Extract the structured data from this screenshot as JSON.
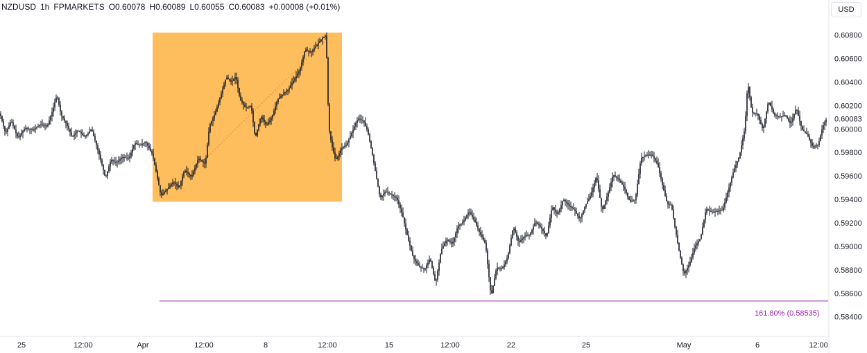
{
  "header": {
    "symbol": "NZDUSD",
    "interval": "1h",
    "broker": "FPMARKETS",
    "open": "O0.60078",
    "high": "H0.60089",
    "low": "L0.60055",
    "close": "C0.60083",
    "change": "+0.00008 (+0.01%)"
  },
  "currency_button": "USD",
  "last_price_label": "0.60083",
  "fib_label": "161.80% (0.58535)",
  "colors": {
    "candles": "#131722",
    "box_fill": "#ffb74d",
    "fib_line": "#9c27b0",
    "axis_text": "#131722",
    "grid_border": "#e0e3eb"
  },
  "chart_data": {
    "type": "line",
    "instrument": "NZDUSD",
    "timeframe": "1h",
    "y_axis": {
      "ticks": [
        0.584,
        0.586,
        0.588,
        0.59,
        0.592,
        0.594,
        0.596,
        0.598,
        0.6,
        0.602,
        0.604,
        0.606,
        0.608
      ],
      "tick_labels": [
        "0.58400",
        "0.58600",
        "0.58800",
        "0.59000",
        "0.59200",
        "0.59400",
        "0.59600",
        "0.59800",
        "0.60000",
        "0.60200",
        "0.60400",
        "0.60600",
        "0.60800"
      ],
      "ylim": [
        0.5831,
        0.6098
      ],
      "position": "right"
    },
    "x_axis": {
      "tick_labels": [
        "25",
        "12:00",
        "Apr",
        "12:00",
        "8",
        "12:00",
        "15",
        "12:00",
        "22",
        "25",
        "May",
        "6",
        "12:00"
      ]
    },
    "series": [
      {
        "values": [
          [
            0,
            0.6013
          ],
          [
            8,
            0.5996
          ],
          [
            16,
            0.6007
          ],
          [
            26,
            0.5992
          ],
          [
            36,
            0.6001
          ],
          [
            48,
            0.5999
          ],
          [
            58,
            0.6004
          ],
          [
            68,
            0.6002
          ],
          [
            76,
            0.6016
          ],
          [
            82,
            0.6029
          ],
          [
            88,
            0.6012
          ],
          [
            96,
            0.6004
          ],
          [
            104,
            0.5993
          ],
          [
            112,
            0.5999
          ],
          [
            122,
            0.5993
          ],
          [
            132,
            0.6
          ],
          [
            140,
            0.5984
          ],
          [
            146,
            0.5972
          ],
          [
            152,
            0.5958
          ],
          [
            160,
            0.5974
          ],
          [
            168,
            0.5971
          ],
          [
            176,
            0.5976
          ],
          [
            186,
            0.5975
          ],
          [
            194,
            0.5988
          ],
          [
            202,
            0.5986
          ],
          [
            210,
            0.5989
          ],
          [
            220,
            0.5978
          ],
          [
            226,
            0.5961
          ],
          [
            232,
            0.5943
          ],
          [
            240,
            0.5948
          ],
          [
            250,
            0.5955
          ],
          [
            258,
            0.595
          ],
          [
            266,
            0.5965
          ],
          [
            276,
            0.5959
          ],
          [
            286,
            0.5975
          ],
          [
            296,
            0.597
          ],
          [
            302,
            0.6003
          ],
          [
            310,
            0.6013
          ],
          [
            318,
            0.6028
          ],
          [
            326,
            0.6044
          ],
          [
            334,
            0.604
          ],
          [
            340,
            0.6045
          ],
          [
            346,
            0.6025
          ],
          [
            354,
            0.6018
          ],
          [
            362,
            0.602
          ],
          [
            368,
            0.5992
          ],
          [
            376,
            0.6011
          ],
          [
            384,
            0.6003
          ],
          [
            392,
            0.601
          ],
          [
            400,
            0.6025
          ],
          [
            408,
            0.603
          ],
          [
            416,
            0.6034
          ],
          [
            424,
            0.6042
          ],
          [
            432,
            0.605
          ],
          [
            440,
            0.6068
          ],
          [
            448,
            0.6065
          ],
          [
            456,
            0.6071
          ],
          [
            464,
            0.6077
          ],
          [
            470,
            0.608
          ],
          [
            474,
            0.6002
          ],
          [
            478,
            0.5987
          ],
          [
            484,
            0.5973
          ],
          [
            492,
            0.5983
          ],
          [
            500,
            0.5987
          ],
          [
            508,
            0.5998
          ],
          [
            516,
            0.6009
          ],
          [
            524,
            0.6007
          ],
          [
            530,
            0.5998
          ],
          [
            536,
            0.5981
          ],
          [
            542,
            0.5961
          ],
          [
            548,
            0.5941
          ],
          [
            556,
            0.5947
          ],
          [
            564,
            0.5944
          ],
          [
            572,
            0.5941
          ],
          [
            580,
            0.5927
          ],
          [
            588,
            0.5907
          ],
          [
            596,
            0.589
          ],
          [
            604,
            0.5883
          ],
          [
            612,
            0.588
          ],
          [
            620,
            0.589
          ],
          [
            628,
            0.5868
          ],
          [
            636,
            0.5897
          ],
          [
            644,
            0.5906
          ],
          [
            652,
            0.5902
          ],
          [
            660,
            0.5917
          ],
          [
            668,
            0.5921
          ],
          [
            676,
            0.593
          ],
          [
            684,
            0.5922
          ],
          [
            692,
            0.5911
          ],
          [
            700,
            0.5902
          ],
          [
            708,
            0.5857
          ],
          [
            716,
            0.5882
          ],
          [
            724,
            0.5881
          ],
          [
            732,
            0.5891
          ],
          [
            740,
            0.5917
          ],
          [
            748,
            0.5903
          ],
          [
            756,
            0.5909
          ],
          [
            764,
            0.591
          ],
          [
            772,
            0.5921
          ],
          [
            780,
            0.5916
          ],
          [
            788,
            0.5908
          ],
          [
            796,
            0.5934
          ],
          [
            804,
            0.5927
          ],
          [
            812,
            0.594
          ],
          [
            820,
            0.5935
          ],
          [
            828,
            0.5931
          ],
          [
            836,
            0.5923
          ],
          [
            844,
            0.5935
          ],
          [
            852,
            0.5944
          ],
          [
            860,
            0.596
          ],
          [
            868,
            0.593
          ],
          [
            876,
            0.5944
          ],
          [
            884,
            0.5961
          ],
          [
            892,
            0.5957
          ],
          [
            900,
            0.595
          ],
          [
            908,
            0.5938
          ],
          [
            916,
            0.594
          ],
          [
            924,
            0.5975
          ],
          [
            932,
            0.5978
          ],
          [
            940,
            0.5978
          ],
          [
            948,
            0.597
          ],
          [
            956,
            0.595
          ],
          [
            962,
            0.5936
          ],
          [
            968,
            0.5935
          ],
          [
            974,
            0.5913
          ],
          [
            980,
            0.5893
          ],
          [
            986,
            0.5876
          ],
          [
            994,
            0.5885
          ],
          [
            1002,
            0.59
          ],
          [
            1010,
            0.5907
          ],
          [
            1018,
            0.5932
          ],
          [
            1026,
            0.5929
          ],
          [
            1034,
            0.593
          ],
          [
            1042,
            0.5931
          ],
          [
            1050,
            0.5948
          ],
          [
            1058,
            0.5965
          ],
          [
            1066,
            0.5977
          ],
          [
            1074,
            0.6001
          ],
          [
            1078,
            0.604
          ],
          [
            1084,
            0.6014
          ],
          [
            1092,
            0.6013
          ],
          [
            1100,
            0.5999
          ],
          [
            1108,
            0.6024
          ],
          [
            1116,
            0.6012
          ],
          [
            1124,
            0.601
          ],
          [
            1132,
            0.6012
          ],
          [
            1140,
            0.6004
          ],
          [
            1148,
            0.6018
          ],
          [
            1156,
            0.6
          ],
          [
            1164,
            0.5995
          ],
          [
            1172,
            0.5984
          ],
          [
            1180,
            0.5987
          ],
          [
            1186,
            0.6002
          ],
          [
            1191,
            0.6008
          ]
        ]
      }
    ],
    "annotations": {
      "highlight_box": {
        "x_from": 220,
        "x_to": 493,
        "y_from": 0.5938,
        "y_to": 0.6082
      },
      "dotted_trendline": {
        "from": [
          300,
          0.5977
        ],
        "to": [
          468,
          0.6074
        ]
      },
      "fib_level": {
        "ratio": "161.80%",
        "price": 0.58535,
        "x_from": 230
      }
    },
    "grid": false,
    "legend": "none"
  }
}
